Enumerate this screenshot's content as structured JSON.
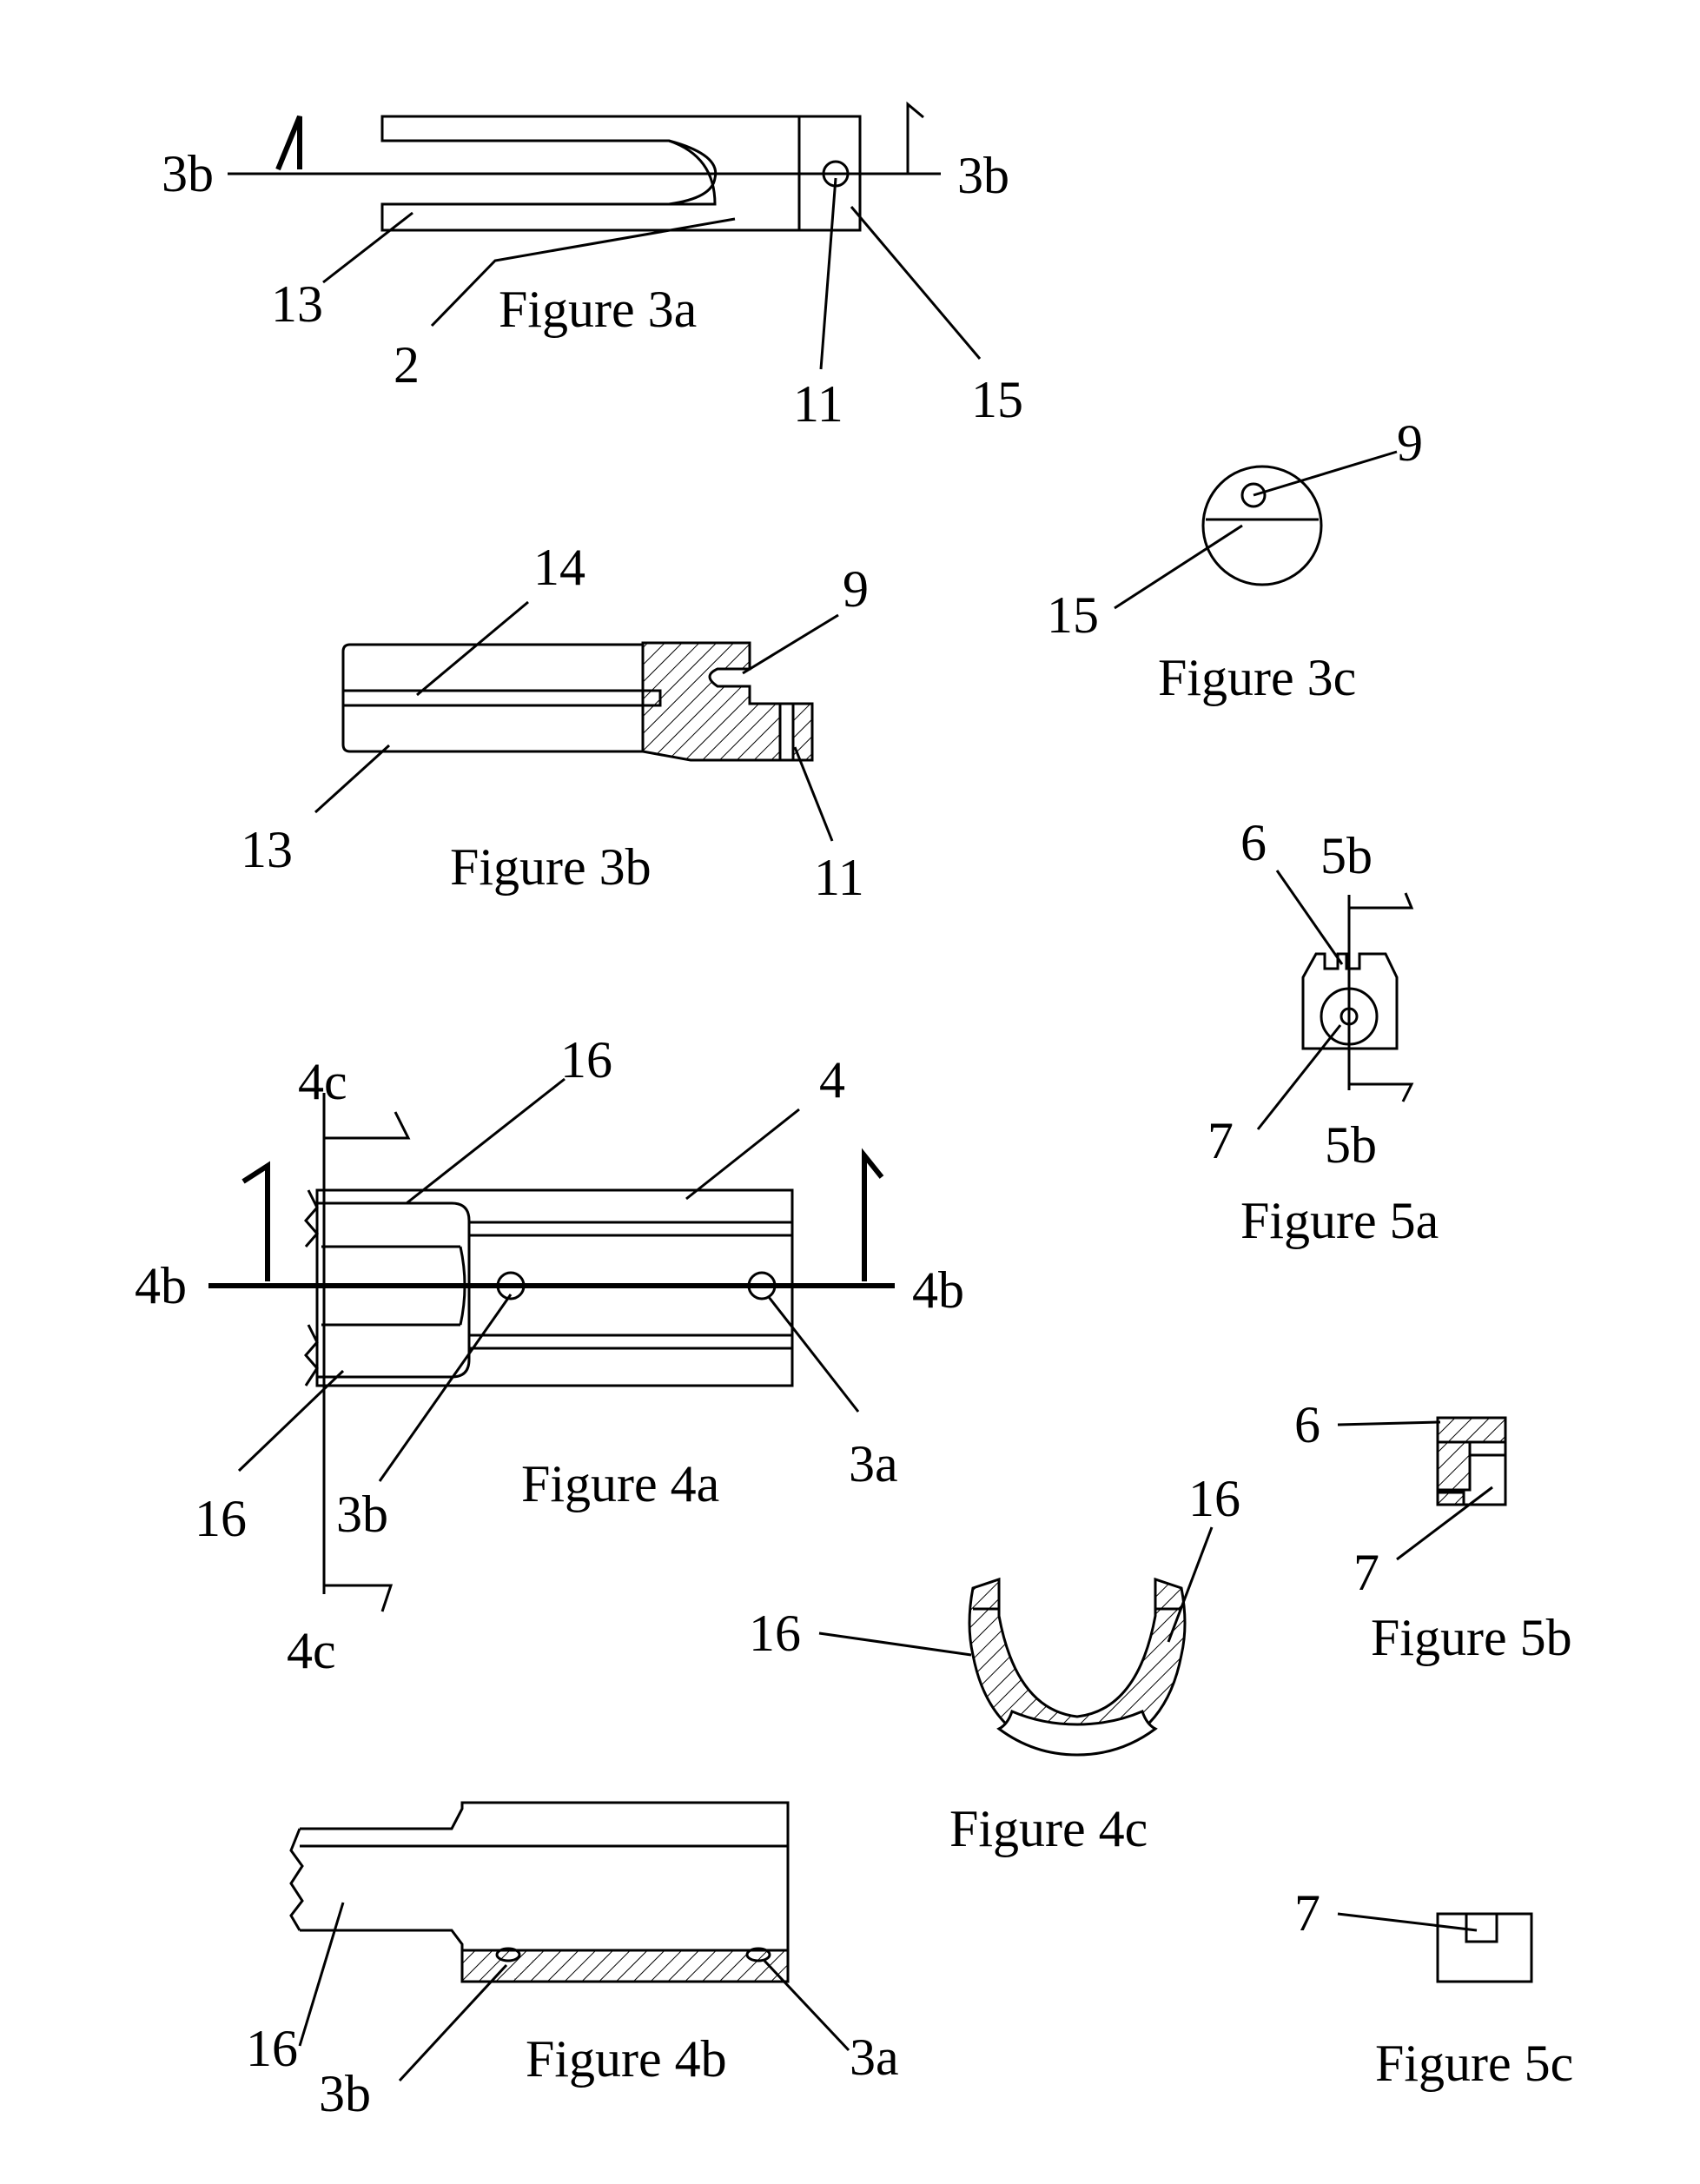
{
  "figures": {
    "fig3a": {
      "caption": "Figure 3a",
      "labels": {
        "section_left": "3b",
        "section_right": "3b",
        "l13": "13",
        "l2": "2",
        "l11": "11",
        "l15": "15"
      }
    },
    "fig3b": {
      "caption": "Figure 3b",
      "labels": {
        "l14": "14",
        "l9": "9",
        "l13": "13",
        "l11": "11"
      }
    },
    "fig3c": {
      "caption": "Figure 3c",
      "labels": {
        "l9": "9",
        "l15": "15"
      }
    },
    "fig4a": {
      "caption": "Figure 4a",
      "labels": {
        "sec4c_top": "4c",
        "sec4c_bottom": "4c",
        "sec4b_left": "4b",
        "sec4b_right": "4b",
        "l16_top": "16",
        "l4": "4",
        "l16_bottom": "16",
        "l3b": "3b",
        "l3a": "3a"
      }
    },
    "fig4b": {
      "caption": "Figure 4b",
      "labels": {
        "l16": "16",
        "l3b": "3b",
        "l3a": "3a"
      }
    },
    "fig4c": {
      "caption": "Figure 4c",
      "labels": {
        "l16_left": "16",
        "l16_right": "16"
      }
    },
    "fig5a": {
      "caption": "Figure 5a",
      "labels": {
        "l6": "6",
        "sec5b_top": "5b",
        "l7": "7",
        "sec5b_bottom": "5b"
      }
    },
    "fig5b": {
      "caption": "Figure 5b",
      "labels": {
        "l6": "6",
        "l7": "7"
      }
    },
    "fig5c": {
      "caption": "Figure 5c",
      "labels": {
        "l7": "7"
      }
    }
  }
}
